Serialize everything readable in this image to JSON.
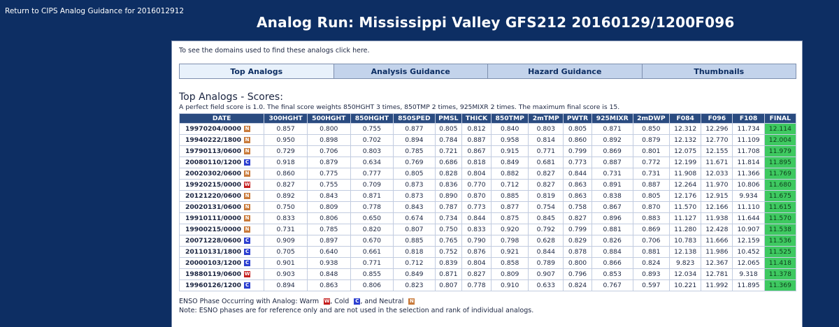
{
  "header": {
    "back_link": "Return to CIPS Analog Guidance for 2016012912",
    "title": "Analog Run: Mississippi Valley GFS212 20160129/1200F096"
  },
  "panel": {
    "domains_text": "To see the domains used to find these analogs click here.",
    "tabs": [
      {
        "label": "Top Analogs",
        "active": true
      },
      {
        "label": "Analysis Guidance",
        "active": false
      },
      {
        "label": "Hazard Guidance",
        "active": false
      },
      {
        "label": "Thumbnails",
        "active": false
      }
    ],
    "section_title": "Top Analogs - Scores:",
    "note": "A perfect field score is 1.0. The final score weights 850HGHT 3 times, 850TMP 2 times, 925MIXR 2 times. The maximum final score is 15."
  },
  "table": {
    "columns": [
      "DATE",
      "300HGHT",
      "500HGHT",
      "850HGHT",
      "850SPED",
      "PMSL",
      "THICK",
      "850TMP",
      "2mTMP",
      "PWTR",
      "925MIXR",
      "2mDWP",
      "F084",
      "F096",
      "F108",
      "FINAL"
    ],
    "rows": [
      {
        "date": "19970204/0000",
        "enso": "N",
        "values": [
          "0.857",
          "0.800",
          "0.755",
          "0.877",
          "0.805",
          "0.812",
          "0.840",
          "0.803",
          "0.805",
          "0.871",
          "0.850",
          "12.312",
          "12.296",
          "11.734",
          "12.114"
        ]
      },
      {
        "date": "19940222/1800",
        "enso": "N",
        "values": [
          "0.950",
          "0.898",
          "0.702",
          "0.894",
          "0.784",
          "0.887",
          "0.958",
          "0.814",
          "0.860",
          "0.892",
          "0.879",
          "12.132",
          "12.770",
          "11.109",
          "12.004"
        ]
      },
      {
        "date": "19790113/0600",
        "enso": "N",
        "values": [
          "0.729",
          "0.706",
          "0.803",
          "0.785",
          "0.721",
          "0.867",
          "0.915",
          "0.771",
          "0.799",
          "0.869",
          "0.801",
          "12.075",
          "12.155",
          "11.708",
          "11.979"
        ]
      },
      {
        "date": "20080110/1200",
        "enso": "C",
        "values": [
          "0.918",
          "0.879",
          "0.634",
          "0.769",
          "0.686",
          "0.818",
          "0.849",
          "0.681",
          "0.773",
          "0.887",
          "0.772",
          "12.199",
          "11.671",
          "11.814",
          "11.895"
        ]
      },
      {
        "date": "20020302/0600",
        "enso": "N",
        "values": [
          "0.860",
          "0.775",
          "0.777",
          "0.805",
          "0.828",
          "0.804",
          "0.882",
          "0.827",
          "0.844",
          "0.731",
          "0.731",
          "11.908",
          "12.033",
          "11.366",
          "11.769"
        ]
      },
      {
        "date": "19920215/0000",
        "enso": "W",
        "values": [
          "0.827",
          "0.755",
          "0.709",
          "0.873",
          "0.836",
          "0.770",
          "0.712",
          "0.827",
          "0.863",
          "0.891",
          "0.887",
          "12.264",
          "11.970",
          "10.806",
          "11.680"
        ]
      },
      {
        "date": "20121220/0600",
        "enso": "N",
        "values": [
          "0.892",
          "0.843",
          "0.871",
          "0.873",
          "0.890",
          "0.870",
          "0.885",
          "0.819",
          "0.863",
          "0.838",
          "0.805",
          "12.176",
          "12.915",
          "9.934",
          "11.675"
        ]
      },
      {
        "date": "20020131/0600",
        "enso": "N",
        "values": [
          "0.750",
          "0.809",
          "0.778",
          "0.843",
          "0.787",
          "0.773",
          "0.877",
          "0.754",
          "0.758",
          "0.867",
          "0.870",
          "11.570",
          "12.166",
          "11.110",
          "11.615"
        ]
      },
      {
        "date": "19910111/0000",
        "enso": "N",
        "values": [
          "0.833",
          "0.806",
          "0.650",
          "0.674",
          "0.734",
          "0.844",
          "0.875",
          "0.845",
          "0.827",
          "0.896",
          "0.883",
          "11.127",
          "11.938",
          "11.644",
          "11.570"
        ]
      },
      {
        "date": "19900215/0000",
        "enso": "N",
        "values": [
          "0.731",
          "0.785",
          "0.820",
          "0.807",
          "0.750",
          "0.833",
          "0.920",
          "0.792",
          "0.799",
          "0.881",
          "0.869",
          "11.280",
          "12.428",
          "10.907",
          "11.538"
        ]
      },
      {
        "date": "20071228/0600",
        "enso": "C",
        "values": [
          "0.909",
          "0.897",
          "0.670",
          "0.885",
          "0.765",
          "0.790",
          "0.798",
          "0.628",
          "0.829",
          "0.826",
          "0.706",
          "10.783",
          "11.666",
          "12.159",
          "11.536"
        ]
      },
      {
        "date": "20110131/1800",
        "enso": "C",
        "values": [
          "0.705",
          "0.640",
          "0.661",
          "0.818",
          "0.752",
          "0.876",
          "0.921",
          "0.844",
          "0.878",
          "0.884",
          "0.881",
          "12.138",
          "11.986",
          "10.452",
          "11.525"
        ]
      },
      {
        "date": "20000103/1200",
        "enso": "C",
        "values": [
          "0.901",
          "0.938",
          "0.771",
          "0.712",
          "0.839",
          "0.804",
          "0.858",
          "0.789",
          "0.800",
          "0.866",
          "0.824",
          "9.823",
          "12.367",
          "12.065",
          "11.418"
        ]
      },
      {
        "date": "19880119/0600",
        "enso": "W",
        "values": [
          "0.903",
          "0.848",
          "0.855",
          "0.849",
          "0.871",
          "0.827",
          "0.809",
          "0.907",
          "0.796",
          "0.853",
          "0.893",
          "12.034",
          "12.781",
          "9.318",
          "11.378"
        ]
      },
      {
        "date": "19960126/1200",
        "enso": "C",
        "values": [
          "0.894",
          "0.863",
          "0.806",
          "0.823",
          "0.807",
          "0.778",
          "0.910",
          "0.633",
          "0.824",
          "0.767",
          "0.597",
          "10.221",
          "11.992",
          "11.895",
          "11.369"
        ]
      }
    ]
  },
  "legend": {
    "line1_prefix": "ENSO Phase Occurring with Analog: Warm",
    "warm_badge": "W",
    "sep1": ", Cold",
    "cold_badge": "C",
    "sep2": ", and Neutral",
    "neutral_badge": "N",
    "line2": "Note: ESNO phases are for reference only and are not used in the selection and rank of individual analogs."
  },
  "colors": {
    "background": "#0d2e63",
    "header_cell": "#2a4b80",
    "final_cell": "#3ec960",
    "tab_active": "#e8f1fb",
    "tab_inactive": "#c3d3eb",
    "enso_warm": "#c41e1e",
    "enso_cold": "#2c3fd0",
    "enso_neutral": "#c97a3a"
  }
}
